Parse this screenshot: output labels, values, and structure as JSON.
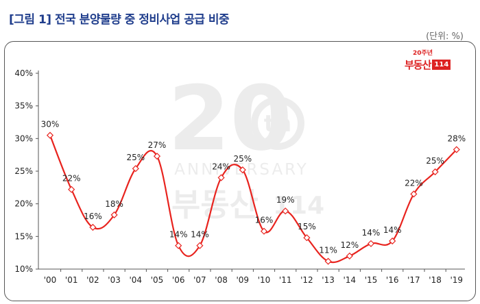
{
  "title": "[그림 1] 전국 분양물량 중 정비사업 공급 비중",
  "unit": "(단위: %)",
  "logo": {
    "small": "20주년",
    "main": "부동산",
    "num": "114"
  },
  "watermark": {
    "big": "20",
    "sup": "th",
    "line": "ANNIVERSARY",
    "brand": "부동산",
    "num": "114"
  },
  "colors": {
    "title": "#1f3d8c",
    "line": "#e8231e",
    "marker_fill": "#ffffff"
  },
  "chart_data": {
    "type": "line",
    "categories": [
      "'00",
      "'01",
      "'02",
      "'03",
      "'04",
      "'05",
      "'06",
      "'07",
      "'08",
      "'09",
      "'10",
      "'11",
      "'12",
      "'13",
      "'14",
      "'15",
      "'16",
      "'17",
      "'18",
      "'19"
    ],
    "series": [
      {
        "values": [
          30.5,
          22.2,
          16.4,
          18.3,
          25.4,
          27.3,
          13.6,
          13.6,
          24.0,
          25.2,
          15.8,
          18.9,
          14.8,
          11.2,
          12.0,
          13.9,
          14.3,
          21.5,
          24.9,
          28.3
        ]
      }
    ],
    "data_labels": [
      "30%",
      "22%",
      "16%",
      "18%",
      "25%",
      "27%",
      "14%",
      "14%",
      "24%",
      "25%",
      "16%",
      "19%",
      "15%",
      "11%",
      "12%",
      "14%",
      "14%",
      "22%",
      "25%",
      "28%"
    ],
    "y_ticks": [
      "10%",
      "15%",
      "20%",
      "25%",
      "30%",
      "35%",
      "40%"
    ],
    "ylim": [
      10,
      40
    ],
    "grid": false,
    "legend": "none"
  }
}
